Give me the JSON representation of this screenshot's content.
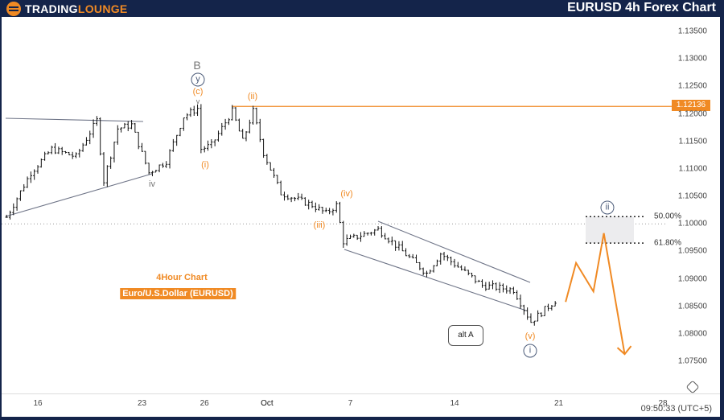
{
  "header": {
    "logo_part1": "TradingLounge",
    "title": "EURUSD 4h Forex Chart"
  },
  "chart_data": {
    "type": "ohlc",
    "title": "EURUSD 4h Forex Chart",
    "subtitle_1": "4Hour Chart",
    "subtitle_2": "Euro/U.S.Dollar (EURUSD)",
    "ylim": [
      1.075,
      1.135
    ],
    "price_ticks": [
      "1.13500",
      "1.13000",
      "1.12500",
      "1.12000",
      "1.11500",
      "1.11000",
      "1.10500",
      "1.10000",
      "1.09500",
      "1.09000",
      "1.08500",
      "1.08000",
      "1.07500"
    ],
    "date_ticks": [
      {
        "label": "16",
        "date": "Sep 16"
      },
      {
        "label": "23",
        "date": "Sep 23"
      },
      {
        "label": "26",
        "date": "Sep 26"
      },
      {
        "label": "Oct",
        "date": "Oct 1"
      },
      {
        "label": "7",
        "date": "Oct 7"
      },
      {
        "label": "14",
        "date": "Oct 14"
      },
      {
        "label": "21",
        "date": "Oct 21"
      },
      {
        "label": "28",
        "date": "Oct 28"
      }
    ],
    "price_path": [
      [
        "Sep 12 12:00",
        1.1012
      ],
      [
        "Sep 13 16:00",
        1.1093
      ],
      [
        "Sep 16 16:00",
        1.1136
      ],
      [
        "Sep 17 20:00",
        1.1122
      ],
      [
        "Sep 18 20:00",
        1.1188
      ],
      [
        "Sep 19 04:00",
        1.1078
      ],
      [
        "Sep 19 20:00",
        1.1173
      ],
      [
        "Sep 20 12:00",
        1.118
      ],
      [
        "Sep 23 08:00",
        1.1093
      ],
      [
        "Sep 24 04:00",
        1.1114
      ],
      [
        "Sep 25 00:00",
        1.1195
      ],
      [
        "Sep 25 16:00",
        1.121
      ],
      [
        "Sep 25 20:00",
        1.1136
      ],
      [
        "Sep 26 08:00",
        1.1143
      ],
      [
        "Sep 27 08:00",
        1.1205
      ],
      [
        "Sep 27 20:00",
        1.115
      ],
      [
        "Sep 30 08:00",
        1.1205
      ],
      [
        "Sep 30 20:00",
        1.1129
      ],
      [
        "Oct 1 16:00",
        1.1056
      ],
      [
        "Oct 3 04:00",
        1.1034
      ],
      [
        "Oct 3 20:00",
        1.1019
      ],
      [
        "Oct 4 08:00",
        1.1034
      ],
      [
        "Oct 4 16:00",
        1.0968
      ],
      [
        "Oct 8 08:00",
        1.099
      ],
      [
        "Oct 10 16:00",
        1.091
      ],
      [
        "Oct 11 08:00",
        1.0946
      ],
      [
        "Oct 15 08:00",
        1.0888
      ],
      [
        "Oct 16 20:00",
        1.088
      ],
      [
        "Oct 17 16:00",
        1.0822
      ],
      [
        "Oct 21 00:00",
        1.0866
      ]
    ],
    "projection": [
      [
        "Oct 21 08:00",
        1.0858
      ],
      [
        "Oct 21 20:00",
        1.0929
      ],
      [
        "Oct 22 16:00",
        1.0877
      ],
      [
        "Oct 23 04:00",
        1.0983
      ],
      [
        "Oct 24 04:00",
        1.0763
      ]
    ],
    "resistance": {
      "price": 1.12136,
      "label": "1.12136",
      "color": "#f08a24"
    },
    "fib": [
      {
        "label": "50.00%",
        "price": 1.1013
      },
      {
        "label": "61.80%",
        "price": 1.0965
      }
    ],
    "wave_labels": {
      "B": "B",
      "y": "y",
      "c": "(c)",
      "v_small": "v",
      "i1": "(i)",
      "iv_small": "iv",
      "ii": "(ii)",
      "iii": "(iii)",
      "iv": "(iv)",
      "v": "(v)",
      "i_circ": "i",
      "ii_circ": "ii"
    },
    "callout": "alt A",
    "colors": {
      "accent": "#f08a24",
      "bars": "#111111",
      "lines": "#6e7487",
      "header": "#14244a"
    }
  },
  "footer": {
    "time": "09:50:33 (UTC+5)"
  }
}
